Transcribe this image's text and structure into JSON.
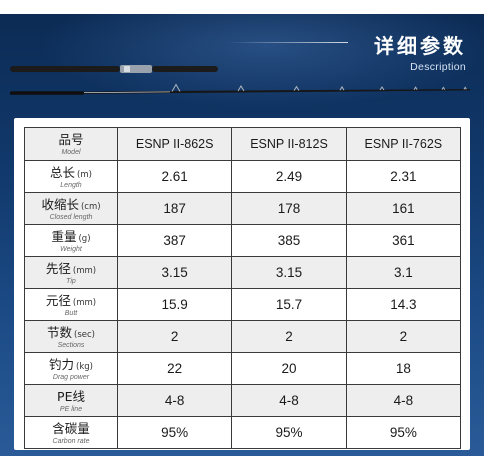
{
  "header": {
    "title": "详细参数",
    "subtitle": "Description"
  },
  "table": {
    "corner": {
      "cn": "品号",
      "en": "Model"
    },
    "models": [
      "ESNP II-862S",
      "ESNP II-812S",
      "ESNP II-762S"
    ],
    "rows": [
      {
        "cn": "总长",
        "unit": "(m)",
        "en": "Length",
        "values": [
          "2.61",
          "2.49",
          "2.31"
        ]
      },
      {
        "cn": "收缩长",
        "unit": "(cm)",
        "en": "Closed length",
        "values": [
          "187",
          "178",
          "161"
        ]
      },
      {
        "cn": "重量",
        "unit": "(g)",
        "en": "Weight",
        "values": [
          "387",
          "385",
          "361"
        ]
      },
      {
        "cn": "先径",
        "unit": "(mm)",
        "en": "Tip",
        "values": [
          "3.15",
          "3.15",
          "3.1"
        ]
      },
      {
        "cn": "元径",
        "unit": "(mm)",
        "en": "Butt",
        "values": [
          "15.9",
          "15.7",
          "14.3"
        ]
      },
      {
        "cn": "节数",
        "unit": "(sec)",
        "en": "Sections",
        "values": [
          "2",
          "2",
          "2"
        ]
      },
      {
        "cn": "钓力",
        "unit": "(kg)",
        "en": "Drag power",
        "values": [
          "22",
          "20",
          "18"
        ]
      },
      {
        "cn": "PE线",
        "unit": "",
        "en": "PE line",
        "values": [
          "4-8",
          "4-8",
          "4-8"
        ]
      },
      {
        "cn": "含碳量",
        "unit": "",
        "en": "Carbon rate",
        "values": [
          "95%",
          "95%",
          "95%"
        ]
      }
    ]
  }
}
